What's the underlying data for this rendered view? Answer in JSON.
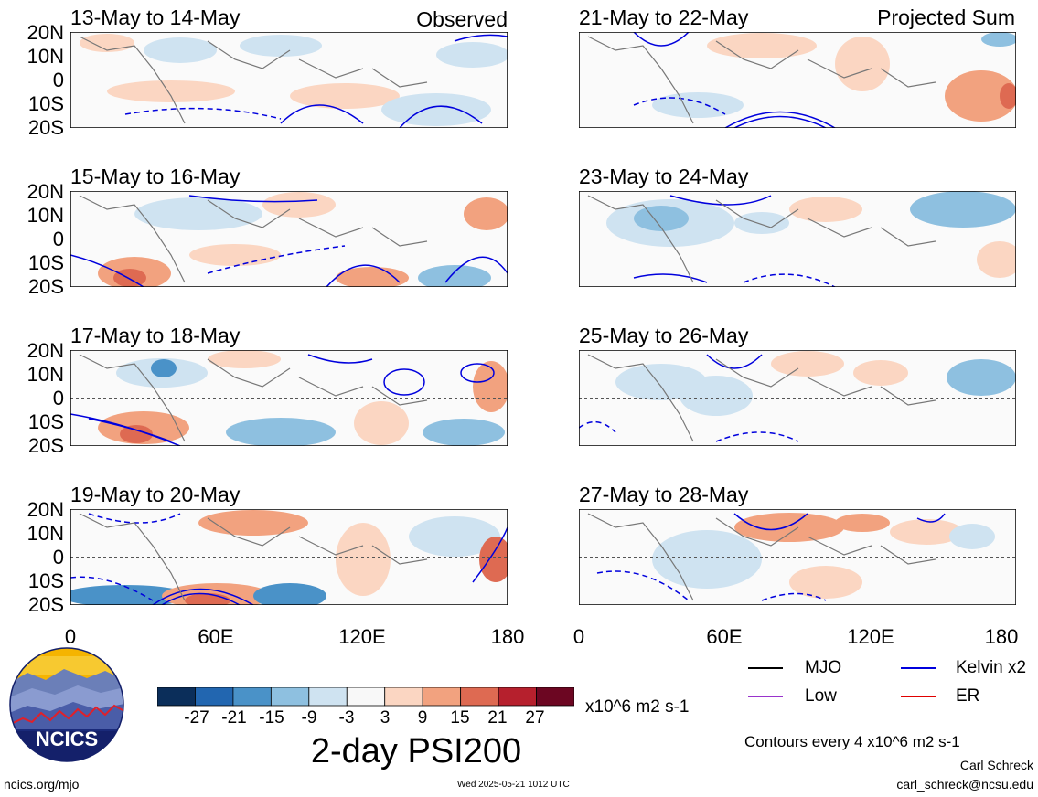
{
  "panels_left": [
    {
      "title": "13-May to 14-May",
      "tag": "Observed"
    },
    {
      "title": "15-May to 16-May",
      "tag": ""
    },
    {
      "title": "17-May to 18-May",
      "tag": ""
    },
    {
      "title": "19-May to 20-May",
      "tag": ""
    }
  ],
  "panels_right": [
    {
      "title": "21-May to 22-May",
      "tag": "Projected Sum"
    },
    {
      "title": "23-May to 24-May",
      "tag": ""
    },
    {
      "title": "25-May to 26-May",
      "tag": ""
    },
    {
      "title": "27-May to 28-May",
      "tag": ""
    }
  ],
  "lat_labels": [
    "20N",
    "10N",
    "0",
    "10S",
    "20S"
  ],
  "lon_labels": [
    "0",
    "60E",
    "120E",
    "180"
  ],
  "colorbar": {
    "colors": [
      "#0b2e5a",
      "#2266b0",
      "#4a92c8",
      "#8ec0e0",
      "#cfe3f1",
      "#f8f8f8",
      "#fbd6c2",
      "#f2a27f",
      "#de6a52",
      "#b6202d",
      "#6c0622"
    ],
    "labels": [
      "-27",
      "-21",
      "-15",
      "-9",
      "-3",
      "3",
      "9",
      "15",
      "21",
      "27"
    ],
    "units": "x10^6 m2 s-1",
    "title": "2-day PSI200"
  },
  "legend": [
    {
      "label": "MJO",
      "color": "#000000"
    },
    {
      "label": "Kelvin x2",
      "color": "#0000dd"
    },
    {
      "label": "Low",
      "color": "#9933cc"
    },
    {
      "label": "ER",
      "color": "#e00000"
    }
  ],
  "contour_note": "Contours every 4 x10^6 m2 s-1",
  "author": "Carl Schreck",
  "email": "carl_schreck@ncsu.edu",
  "site": "ncics.org/mjo",
  "timestamp": "Wed 2025-05-21 1012 UTC",
  "logo_text": "NCICS"
}
